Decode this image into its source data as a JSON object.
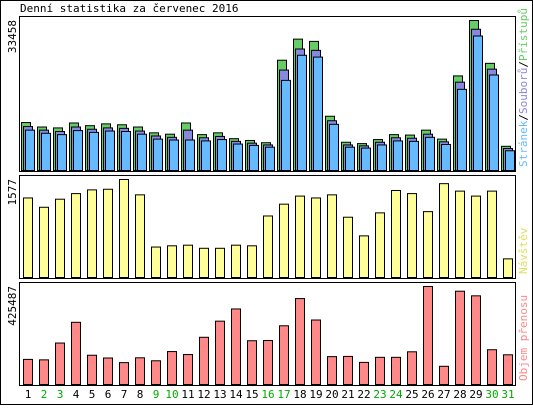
{
  "title": "Denní statistika za červenec 2016",
  "colors": {
    "hits": "#66CC66",
    "files": "#8888DD",
    "pages": "#66BBFF",
    "visits": "#FFFF99",
    "kbytes": "#FF8888",
    "weekend": "#00AA00",
    "frame": "#000000"
  },
  "chart_data": [
    {
      "type": "bar",
      "ymax_label": "33458",
      "legend": {
        "sep": "/",
        "pages": "Stránek",
        "files": "Souborů",
        "hits": "Přístupů"
      },
      "categories": [
        "1",
        "2",
        "3",
        "4",
        "5",
        "6",
        "7",
        "8",
        "9",
        "10",
        "11",
        "12",
        "13",
        "14",
        "15",
        "16",
        "17",
        "18",
        "19",
        "20",
        "21",
        "22",
        "23",
        "24",
        "25",
        "26",
        "27",
        "28",
        "29",
        "30",
        "31"
      ],
      "weekend_days": [
        "2",
        "3",
        "9",
        "10",
        "16",
        "17",
        "23",
        "24",
        "30",
        "31"
      ],
      "ylim": [
        0,
        33458
      ],
      "series": [
        {
          "name": "Přístupů",
          "key": "hits",
          "values": [
            10700,
            9700,
            9500,
            10600,
            10000,
            10400,
            10200,
            9700,
            8400,
            8100,
            10600,
            8000,
            8400,
            7100,
            6700,
            6200,
            24600,
            29300,
            28800,
            12100,
            6300,
            6000,
            6900,
            8000,
            7900,
            9000,
            7000,
            21100,
            33458,
            23900,
            5400
          ]
        },
        {
          "name": "Souborů",
          "key": "files",
          "values": [
            9800,
            9000,
            8700,
            9700,
            9200,
            9500,
            9400,
            8800,
            7700,
            7400,
            9000,
            7300,
            7600,
            6500,
            6100,
            5700,
            22400,
            27100,
            26800,
            11100,
            5700,
            5500,
            6300,
            7300,
            7200,
            8100,
            6400,
            19700,
            31500,
            22600,
            4900
          ]
        },
        {
          "name": "Stránek",
          "key": "pages",
          "values": [
            9000,
            8300,
            8000,
            8900,
            8500,
            8800,
            8700,
            8100,
            7000,
            6800,
            6800,
            6600,
            6900,
            5900,
            5600,
            5200,
            20100,
            25700,
            25300,
            10300,
            5200,
            5000,
            5700,
            6600,
            6500,
            7400,
            5800,
            18100,
            30000,
            21300,
            4400
          ]
        }
      ]
    },
    {
      "type": "bar",
      "ymax_label": "1577",
      "legend_label": "Návštěv",
      "categories": [
        "1",
        "2",
        "3",
        "4",
        "5",
        "6",
        "7",
        "8",
        "9",
        "10",
        "11",
        "12",
        "13",
        "14",
        "15",
        "16",
        "17",
        "18",
        "19",
        "20",
        "21",
        "22",
        "23",
        "24",
        "25",
        "26",
        "27",
        "28",
        "29",
        "30",
        "31"
      ],
      "ylim": [
        0,
        1577
      ],
      "series": [
        {
          "name": "Návštěv",
          "key": "visits",
          "values": [
            1280,
            1130,
            1260,
            1350,
            1410,
            1420,
            1577,
            1330,
            490,
            510,
            520,
            470,
            470,
            520,
            510,
            990,
            1180,
            1310,
            1280,
            1330,
            970,
            670,
            1040,
            1400,
            1350,
            1060,
            1510,
            1390,
            1310,
            1390,
            300
          ]
        }
      ]
    },
    {
      "type": "bar",
      "ymax_label": "425487",
      "legend_label": "Objem přenosu",
      "categories": [
        "1",
        "2",
        "3",
        "4",
        "5",
        "6",
        "7",
        "8",
        "9",
        "10",
        "11",
        "12",
        "13",
        "14",
        "15",
        "16",
        "17",
        "18",
        "19",
        "20",
        "21",
        "22",
        "23",
        "24",
        "25",
        "26",
        "27",
        "28",
        "29",
        "30",
        "31"
      ],
      "ylim": [
        0,
        425487
      ],
      "series": [
        {
          "name": "Objem přenosu",
          "key": "kbytes",
          "values": [
            109000,
            107000,
            180000,
            270000,
            127000,
            115000,
            95000,
            116000,
            103000,
            143000,
            130000,
            205000,
            275000,
            328000,
            190000,
            191000,
            255000,
            373000,
            280000,
            121000,
            122000,
            96000,
            118000,
            118000,
            142000,
            425487,
            79000,
            405000,
            385000,
            151000,
            129000
          ]
        }
      ]
    }
  ]
}
